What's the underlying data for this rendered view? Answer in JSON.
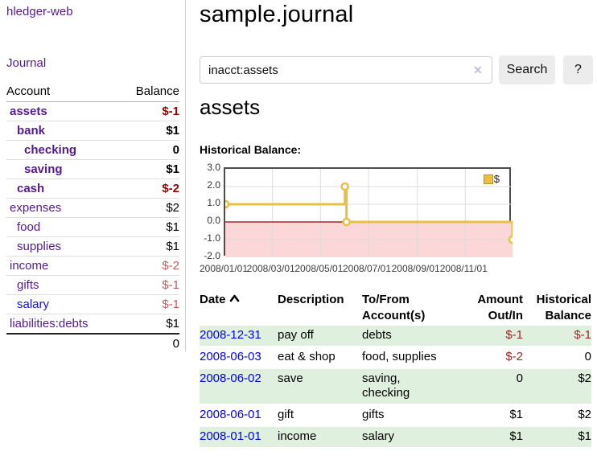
{
  "app": {
    "title": "hledger-web",
    "nav": {
      "journal": "Journal"
    }
  },
  "sidebar": {
    "header": {
      "account": "Account",
      "balance": "Balance"
    },
    "accounts": [
      {
        "name": "assets",
        "indent": 1,
        "bold": true,
        "balance": "$-1",
        "balance_style": "neg-strong",
        "link_style": "purple"
      },
      {
        "name": "bank",
        "indent": 2,
        "bold": true,
        "balance": "$1",
        "balance_style": "normal",
        "link_style": "purple"
      },
      {
        "name": "checking",
        "indent": 3,
        "bold": true,
        "balance": "0",
        "balance_style": "normal",
        "link_style": "purple"
      },
      {
        "name": "saving",
        "indent": 3,
        "bold": true,
        "balance": "$1",
        "balance_style": "normal",
        "link_style": "purple"
      },
      {
        "name": "cash",
        "indent": 2,
        "bold": true,
        "balance": "$-2",
        "balance_style": "neg-strong",
        "link_style": "purple"
      },
      {
        "name": "expenses",
        "indent": 1,
        "bold": false,
        "balance": "$2",
        "balance_style": "normal",
        "link_style": "purple"
      },
      {
        "name": "food",
        "indent": 2,
        "bold": false,
        "balance": "$1",
        "balance_style": "normal",
        "link_style": "purple"
      },
      {
        "name": "supplies",
        "indent": 2,
        "bold": false,
        "balance": "$1",
        "balance_style": "normal",
        "link_style": "purple"
      },
      {
        "name": "income",
        "indent": 1,
        "bold": false,
        "balance": "$-2",
        "balance_style": "neg-soft",
        "link_style": "purple"
      },
      {
        "name": "gifts",
        "indent": 2,
        "bold": false,
        "balance": "$-1",
        "balance_style": "neg-soft",
        "link_style": "purple"
      },
      {
        "name": "salary",
        "indent": 2,
        "bold": false,
        "balance": "$-1",
        "balance_style": "neg-soft",
        "link_style": "blue"
      },
      {
        "name": "liabilities:debts",
        "indent": 1,
        "bold": false,
        "balance": "$1",
        "balance_style": "normal",
        "link_style": "purple"
      }
    ],
    "total": "0"
  },
  "main": {
    "title": "sample.journal",
    "search": {
      "value": "inacct:assets",
      "clear_icon": "✕",
      "search_button": "Search",
      "help_button": "?"
    },
    "account_heading": "assets",
    "chart_label": "Historical Balance:"
  },
  "chart_data": {
    "type": "line",
    "step": true,
    "title": "Historical Balance",
    "ylim": [
      -2,
      3
    ],
    "y_ticks": [
      "3.0",
      "2.0",
      "1.0",
      "0.0",
      "-1.0",
      "-2.0"
    ],
    "y_gridlines": [
      2,
      1,
      -1
    ],
    "x_domain_days": [
      0,
      365
    ],
    "x_ticks": [
      {
        "label": "2008/01/01",
        "day": 0
      },
      {
        "label": "2008/03/01",
        "day": 60
      },
      {
        "label": "2008/05/01",
        "day": 121
      },
      {
        "label": "2008/07/01",
        "day": 182
      },
      {
        "label": "2008/09/01",
        "day": 244
      },
      {
        "label": "2008/11/01",
        "day": 305
      }
    ],
    "series": [
      {
        "name": "$",
        "color": "#e7c045",
        "points": [
          {
            "date": "2008-01-01",
            "day": 0,
            "value": 1
          },
          {
            "date": "2008-06-01",
            "day": 152,
            "value": 2
          },
          {
            "date": "2008-06-03",
            "day": 154,
            "value": 0
          },
          {
            "date": "2008-12-31",
            "day": 365,
            "value": -1
          }
        ]
      }
    ],
    "colors": {
      "negative_region": "#fbd7d7",
      "zero_line": "#990000",
      "grid": "#dcdcdc",
      "border": "#4d4d4d",
      "marker_fill": "#ffffff"
    },
    "legend": {
      "label": "$",
      "position": "top-right"
    }
  },
  "register": {
    "headers": [
      {
        "line1": "Date",
        "line2": "",
        "align": "left",
        "sorted_asc": true
      },
      {
        "line1": "Description",
        "line2": "",
        "align": "left",
        "sorted_asc": false
      },
      {
        "line1": "To/From",
        "line2": "Account(s)",
        "align": "left",
        "sorted_asc": false
      },
      {
        "line1": "Amount",
        "line2": "Out/In",
        "align": "right",
        "sorted_asc": false
      },
      {
        "line1": "Historical",
        "line2": "Balance",
        "align": "right",
        "sorted_asc": false
      }
    ],
    "rows": [
      {
        "date": "2008-12-31",
        "description": "pay off",
        "account_lines": [
          "debts"
        ],
        "amount": "$-1",
        "balance": "$-1",
        "highlight": true
      },
      {
        "date": "2008-06-03",
        "description": "eat & shop",
        "account_lines": [
          "food, supplies"
        ],
        "amount": "$-2",
        "balance": "0",
        "highlight": false
      },
      {
        "date": "2008-06-02",
        "description": "save",
        "account_lines": [
          "saving,",
          "checking"
        ],
        "amount": "0",
        "balance": "$2",
        "highlight": true
      },
      {
        "date": "2008-06-01",
        "description": "gift",
        "account_lines": [
          "gifts"
        ],
        "amount": "$1",
        "balance": "$2",
        "highlight": false
      },
      {
        "date": "2008-01-01",
        "description": "income",
        "account_lines": [
          "salary"
        ],
        "amount": "$1",
        "balance": "$1",
        "highlight": true
      }
    ]
  }
}
